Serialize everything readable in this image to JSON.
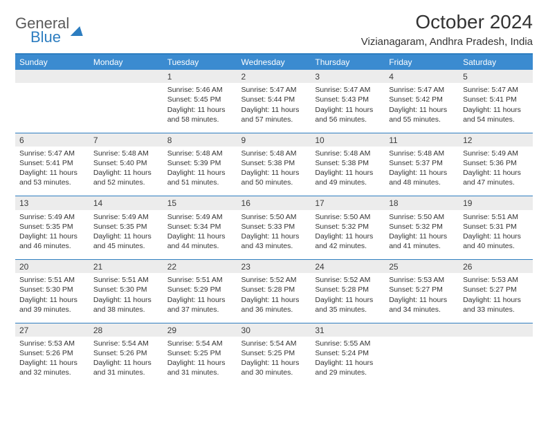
{
  "brand": {
    "word1": "General",
    "word2": "Blue"
  },
  "title": "October 2024",
  "location": "Vizianagaram, Andhra Pradesh, India",
  "colors": {
    "header_bg": "#3b8bd0",
    "border": "#2d7dc0",
    "daynum_bg": "#ececec",
    "text": "#333333",
    "logo_gray": "#5a5a5a"
  },
  "dayHeaders": [
    "Sunday",
    "Monday",
    "Tuesday",
    "Wednesday",
    "Thursday",
    "Friday",
    "Saturday"
  ],
  "weeks": [
    [
      null,
      null,
      {
        "n": "1",
        "sr": "5:46 AM",
        "ss": "5:45 PM",
        "dl": "11 hours and 58 minutes."
      },
      {
        "n": "2",
        "sr": "5:47 AM",
        "ss": "5:44 PM",
        "dl": "11 hours and 57 minutes."
      },
      {
        "n": "3",
        "sr": "5:47 AM",
        "ss": "5:43 PM",
        "dl": "11 hours and 56 minutes."
      },
      {
        "n": "4",
        "sr": "5:47 AM",
        "ss": "5:42 PM",
        "dl": "11 hours and 55 minutes."
      },
      {
        "n": "5",
        "sr": "5:47 AM",
        "ss": "5:41 PM",
        "dl": "11 hours and 54 minutes."
      }
    ],
    [
      {
        "n": "6",
        "sr": "5:47 AM",
        "ss": "5:41 PM",
        "dl": "11 hours and 53 minutes."
      },
      {
        "n": "7",
        "sr": "5:48 AM",
        "ss": "5:40 PM",
        "dl": "11 hours and 52 minutes."
      },
      {
        "n": "8",
        "sr": "5:48 AM",
        "ss": "5:39 PM",
        "dl": "11 hours and 51 minutes."
      },
      {
        "n": "9",
        "sr": "5:48 AM",
        "ss": "5:38 PM",
        "dl": "11 hours and 50 minutes."
      },
      {
        "n": "10",
        "sr": "5:48 AM",
        "ss": "5:38 PM",
        "dl": "11 hours and 49 minutes."
      },
      {
        "n": "11",
        "sr": "5:48 AM",
        "ss": "5:37 PM",
        "dl": "11 hours and 48 minutes."
      },
      {
        "n": "12",
        "sr": "5:49 AM",
        "ss": "5:36 PM",
        "dl": "11 hours and 47 minutes."
      }
    ],
    [
      {
        "n": "13",
        "sr": "5:49 AM",
        "ss": "5:35 PM",
        "dl": "11 hours and 46 minutes."
      },
      {
        "n": "14",
        "sr": "5:49 AM",
        "ss": "5:35 PM",
        "dl": "11 hours and 45 minutes."
      },
      {
        "n": "15",
        "sr": "5:49 AM",
        "ss": "5:34 PM",
        "dl": "11 hours and 44 minutes."
      },
      {
        "n": "16",
        "sr": "5:50 AM",
        "ss": "5:33 PM",
        "dl": "11 hours and 43 minutes."
      },
      {
        "n": "17",
        "sr": "5:50 AM",
        "ss": "5:32 PM",
        "dl": "11 hours and 42 minutes."
      },
      {
        "n": "18",
        "sr": "5:50 AM",
        "ss": "5:32 PM",
        "dl": "11 hours and 41 minutes."
      },
      {
        "n": "19",
        "sr": "5:51 AM",
        "ss": "5:31 PM",
        "dl": "11 hours and 40 minutes."
      }
    ],
    [
      {
        "n": "20",
        "sr": "5:51 AM",
        "ss": "5:30 PM",
        "dl": "11 hours and 39 minutes."
      },
      {
        "n": "21",
        "sr": "5:51 AM",
        "ss": "5:30 PM",
        "dl": "11 hours and 38 minutes."
      },
      {
        "n": "22",
        "sr": "5:51 AM",
        "ss": "5:29 PM",
        "dl": "11 hours and 37 minutes."
      },
      {
        "n": "23",
        "sr": "5:52 AM",
        "ss": "5:28 PM",
        "dl": "11 hours and 36 minutes."
      },
      {
        "n": "24",
        "sr": "5:52 AM",
        "ss": "5:28 PM",
        "dl": "11 hours and 35 minutes."
      },
      {
        "n": "25",
        "sr": "5:53 AM",
        "ss": "5:27 PM",
        "dl": "11 hours and 34 minutes."
      },
      {
        "n": "26",
        "sr": "5:53 AM",
        "ss": "5:27 PM",
        "dl": "11 hours and 33 minutes."
      }
    ],
    [
      {
        "n": "27",
        "sr": "5:53 AM",
        "ss": "5:26 PM",
        "dl": "11 hours and 32 minutes."
      },
      {
        "n": "28",
        "sr": "5:54 AM",
        "ss": "5:26 PM",
        "dl": "11 hours and 31 minutes."
      },
      {
        "n": "29",
        "sr": "5:54 AM",
        "ss": "5:25 PM",
        "dl": "11 hours and 31 minutes."
      },
      {
        "n": "30",
        "sr": "5:54 AM",
        "ss": "5:25 PM",
        "dl": "11 hours and 30 minutes."
      },
      {
        "n": "31",
        "sr": "5:55 AM",
        "ss": "5:24 PM",
        "dl": "11 hours and 29 minutes."
      },
      null,
      null
    ]
  ],
  "labels": {
    "sunrise": "Sunrise:",
    "sunset": "Sunset:",
    "daylight": "Daylight:"
  }
}
